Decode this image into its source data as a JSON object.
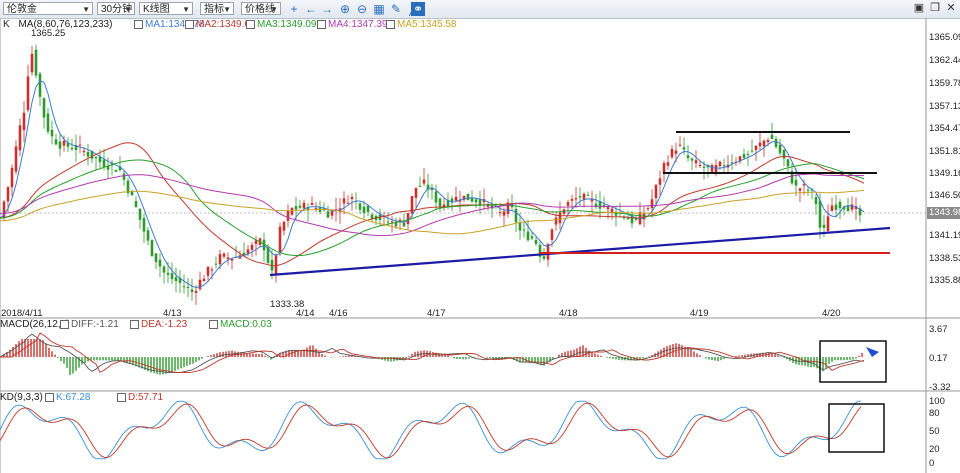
{
  "toolbar": {
    "symbol": "伦敦金",
    "period": "30分钟",
    "chart_type": "K线图",
    "indicator": "指标",
    "price_line": "价格线"
  },
  "main_legend": {
    "prefix": "K",
    "ma_params": "MA(8,60,76,123,233)",
    "ma1": "MA1:1345.78",
    "ma2": "MA2:1349.66",
    "ma3": "MA3:1349.09",
    "ma4": "MA4:1347.39",
    "ma5": "MA5:1345.58"
  },
  "macd_legend": {
    "params": "MACD(26,12,9)",
    "diff": "DIFF:-1.21",
    "dea": "DEA:-1.23",
    "macd": "MACD:0.03"
  },
  "kd_legend": {
    "params": "KD(9,3,3)",
    "k": "K:67.28",
    "d": "D:57.71"
  },
  "annotations": {
    "high": "1365.25",
    "low": "1333.38"
  },
  "price_axis": [
    "1365.09",
    "1362.44",
    "1359.78",
    "1357.13",
    "1354.47",
    "1351.81",
    "1349.16",
    "1346.50",
    "1343.85",
    "1341.19",
    "1338.53",
    "1335.88"
  ],
  "current_price": "1343.98",
  "macd_axis": [
    "3.67",
    "0.17",
    "-3.32"
  ],
  "kd_axis": [
    "100",
    "80",
    "50",
    "20",
    "0"
  ],
  "date_axis": [
    "2018/4/11",
    "4/13",
    "4/14",
    "4/16",
    "4/17",
    "4/18",
    "4/19",
    "4/20"
  ],
  "colors": {
    "up": "#c8322d",
    "down": "#2e9a2e",
    "ma1": "#3a7bd5",
    "ma2": "#c0392b",
    "ma3": "#27a02a",
    "ma4": "#b23ab0",
    "ma5": "#c9a227",
    "trend_blue": "#1b1ba6",
    "support_red": "#d11f1f",
    "macd_diff": "#555555",
    "macd_dea": "#c0392b",
    "kd_k": "#3a8fd5",
    "kd_d": "#c0392b"
  }
}
